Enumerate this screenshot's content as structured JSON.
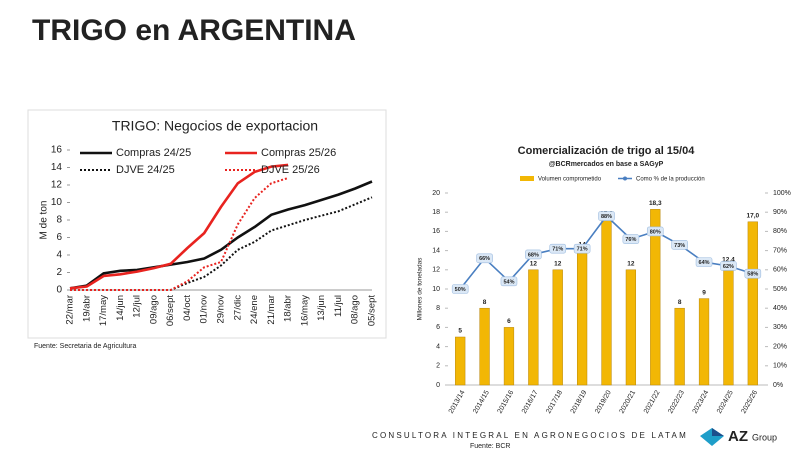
{
  "title": "TRIGO en ARGENTINA",
  "source_left": "Fuente: Secretaria de Agricultura",
  "footer": "CONSULTORA INTEGRAL EN AGRONEGOCIOS DE LATAM",
  "source_right": "Fuente: BCR",
  "logo": {
    "name": "AZ",
    "sub": "Group"
  },
  "chart_data": [
    {
      "type": "line",
      "title": "TRIGO: Negocios de exportacion",
      "y_label": "M de ton",
      "categories": [
        "22/mar",
        "19/abr",
        "17/may",
        "14/jun",
        "12/jul",
        "09/ago",
        "06/sept",
        "04/oct",
        "01/nov",
        "29/nov",
        "27/dic",
        "24/ene",
        "21/mar",
        "18/abr",
        "16/may",
        "13/jun",
        "11/jul",
        "08/ago",
        "05/sept"
      ],
      "ylim": [
        0,
        16
      ],
      "yticks": [
        0,
        2,
        4,
        6,
        8,
        10,
        12,
        14,
        16
      ],
      "grid": false,
      "series": [
        {
          "name": "Compras 24/25",
          "color": "#111111",
          "style": "solid",
          "values": [
            0.2,
            0.5,
            1.9,
            2.2,
            2.3,
            2.6,
            2.9,
            3.2,
            3.6,
            4.6,
            6.0,
            7.2,
            8.6,
            9.2,
            9.7,
            10.3,
            10.9,
            11.6,
            12.4
          ]
        },
        {
          "name": "Compras 25/26",
          "color": "#e8231f",
          "style": "solid",
          "values": [
            0.2,
            0.4,
            1.6,
            1.8,
            2.1,
            2.5,
            3.0,
            4.8,
            6.5,
            9.5,
            12.2,
            13.5,
            14.1,
            14.3,
            null,
            null,
            null,
            null,
            null
          ]
        },
        {
          "name": "DJVE 24/25",
          "color": "#111111",
          "style": "dotted",
          "values": [
            0,
            0,
            0,
            0,
            0,
            0,
            0,
            0.8,
            1.5,
            2.8,
            4.6,
            5.5,
            6.8,
            7.4,
            8.0,
            8.5,
            9.0,
            9.8,
            10.6
          ]
        },
        {
          "name": "DJVE 25/26",
          "color": "#e8231f",
          "style": "dotted",
          "values": [
            0,
            0,
            0,
            0,
            0,
            0,
            0,
            1.0,
            2.6,
            3.2,
            7.5,
            10.5,
            12.2,
            12.8,
            null,
            null,
            null,
            null,
            null
          ]
        }
      ]
    },
    {
      "type": "bar",
      "title": "Comercialización de trigo al 15/04",
      "subtitle": "@BCRmercados en base a SAGyP",
      "y_label": "Millones de toneladas",
      "categories": [
        "2013/14",
        "2014/15",
        "2015/16",
        "2016/17",
        "2017/18",
        "2018/19",
        "2019/20",
        "2020/21",
        "2021/22",
        "2022/23",
        "2023/24",
        "2024/25",
        "2025/26"
      ],
      "ylim": [
        0,
        20
      ],
      "yticks": [
        0,
        2,
        4,
        6,
        8,
        10,
        12,
        14,
        16,
        18,
        20
      ],
      "y2lim": [
        0,
        100
      ],
      "y2ticks": [
        {
          "value": 0,
          "label": "0%"
        },
        {
          "value": 10,
          "label": "10%"
        },
        {
          "value": 20,
          "label": "20%"
        },
        {
          "value": 30,
          "label": "30%"
        },
        {
          "value": 40,
          "label": "40%"
        },
        {
          "value": 50,
          "label": "50%"
        },
        {
          "value": 60,
          "label": "60%"
        },
        {
          "value": 70,
          "label": "70%"
        },
        {
          "value": 80,
          "label": "80%"
        },
        {
          "value": 90,
          "label": "90%"
        },
        {
          "value": 100,
          "label": "100%"
        }
      ],
      "series": [
        {
          "name": "Volumen comprometido",
          "type": "bar",
          "color": "#f2b705",
          "values": [
            5,
            8,
            6,
            12,
            12,
            14,
            17.2,
            12,
            18.3,
            8,
            9,
            12.4,
            17
          ],
          "value_labels": [
            "5",
            "8",
            "6",
            "12",
            "12",
            "14",
            "17,2",
            "12",
            "18,3",
            "8",
            "9",
            "12,4",
            "17,0"
          ]
        },
        {
          "name": "Como % de la producción",
          "type": "line",
          "axis": "y2",
          "color": "#4a7fc1",
          "values": [
            50,
            66,
            54,
            68,
            71,
            71,
            88,
            76,
            80,
            73,
            64,
            62,
            58
          ],
          "value_labels": [
            "50%",
            "66%",
            "54%",
            "68%",
            "71%",
            "71%",
            "88%",
            "76%",
            "80%",
            "73%",
            "64%",
            "62%",
            "58%"
          ]
        }
      ]
    }
  ]
}
